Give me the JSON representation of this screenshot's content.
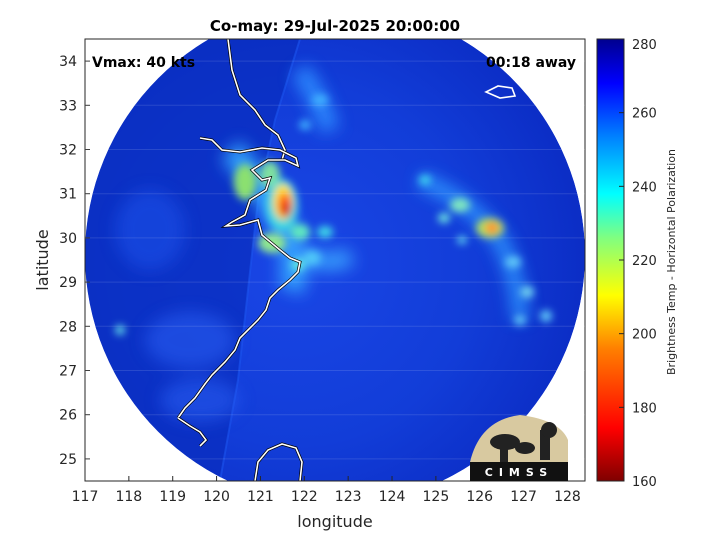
{
  "title": "Co-may: 29-Jul-2025 20:00:00",
  "vmax_label": "Vmax: 40 kts",
  "away_label": "00:18 away",
  "xlabel": "longitude",
  "ylabel": "latitude",
  "x_ticks": [
    "117",
    "118",
    "119",
    "120",
    "121",
    "122",
    "123",
    "124",
    "125",
    "126",
    "127",
    "128"
  ],
  "y_ticks": [
    "25",
    "26",
    "27",
    "28",
    "29",
    "30",
    "31",
    "32",
    "33",
    "34"
  ],
  "colorbar": {
    "label": "Brightness Temp - Horizontal Polarization",
    "ticks": [
      "160",
      "180",
      "200",
      "220",
      "240",
      "260",
      "280"
    ],
    "range": [
      160,
      280
    ],
    "colormap": [
      "#7f0000",
      "#ff0000",
      "#ff8000",
      "#ffff00",
      "#80ff80",
      "#00ffff",
      "#0080ff",
      "#0000ff",
      "#00008f"
    ]
  },
  "logo_text": "CIMSS",
  "storm_center": {
    "lon": 121.6,
    "lat": 30.6
  },
  "map_extent": {
    "lon": [
      117,
      128.4
    ],
    "lat": [
      24.5,
      34.5
    ]
  }
}
